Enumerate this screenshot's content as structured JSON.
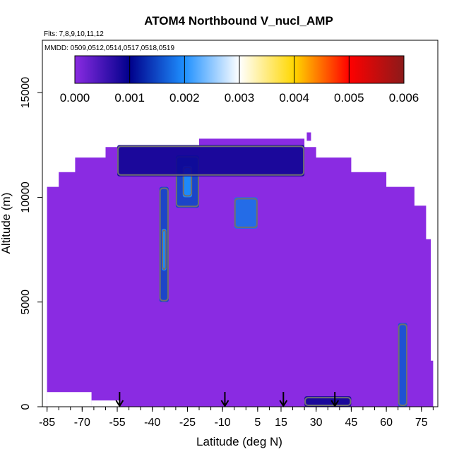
{
  "chart_data": {
    "type": "heatmap",
    "title": "ATOM4 Northbound V_nucl_AMP",
    "annotations": [
      "Flts: 7,8,9,10,11,12",
      "MMDD: 0509,0512,0514,0517,0518,0519"
    ],
    "xlabel": "Latitude (deg N)",
    "ylabel": "Altitude (m)",
    "xlim": [
      -87,
      82
    ],
    "ylim": [
      0,
      17500
    ],
    "x_ticks": [
      -85,
      -70,
      -55,
      -40,
      -25,
      -10,
      5,
      15,
      30,
      45,
      60,
      75
    ],
    "y_ticks": [
      0,
      5000,
      10000,
      15000
    ],
    "colorbar": {
      "range": [
        0,
        0.006
      ],
      "ticks": [
        "0.000",
        "0.001",
        "0.002",
        "0.003",
        "0.004",
        "0.005",
        "0.006"
      ],
      "colors": [
        "#8a2be2",
        "#00008b",
        "#1e90ff",
        "#ffffff",
        "#ffd700",
        "#ff0000",
        "#8b1a1a"
      ],
      "placement": "top"
    },
    "background_value": 0.0,
    "background_color": "#8a2be2",
    "arrows_latitude": [
      -54,
      -9,
      16,
      38
    ],
    "enhanced_regions": [
      {
        "lat": [
          -37,
          -33
        ],
        "alt": [
          5000,
          10500
        ],
        "value": 0.0015
      },
      {
        "lat": [
          -36,
          -34
        ],
        "alt": [
          6500,
          8500
        ],
        "value": 0.002
      },
      {
        "lat": [
          -30,
          -20
        ],
        "alt": [
          9500,
          12000
        ],
        "value": 0.0015
      },
      {
        "lat": [
          -27,
          -23
        ],
        "alt": [
          10000,
          11500
        ],
        "value": 0.002
      },
      {
        "lat": [
          -5,
          5
        ],
        "alt": [
          8500,
          10000
        ],
        "value": 0.0018
      },
      {
        "lat": [
          -55,
          25
        ],
        "alt": [
          11000,
          12500
        ],
        "value": 0.0009
      },
      {
        "lat": [
          65,
          69
        ],
        "alt": [
          0,
          4000
        ],
        "value": 0.0016
      },
      {
        "lat": [
          25,
          45
        ],
        "alt": [
          0,
          500
        ],
        "value": 0.0009
      }
    ]
  }
}
